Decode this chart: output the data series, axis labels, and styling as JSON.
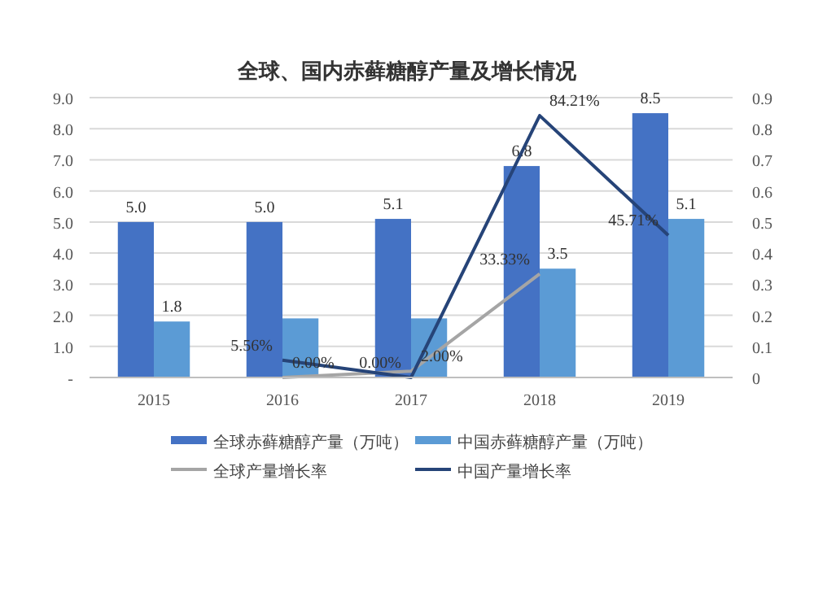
{
  "chart_data": {
    "type": "bar",
    "title": "全球、国内赤藓糖醇产量及增长情况",
    "categories": [
      "2015",
      "2016",
      "2017",
      "2018",
      "2019"
    ],
    "series": [
      {
        "name": "全球赤藓糖醇产量（万吨）",
        "color": "#4472c4",
        "values": [
          5.0,
          5.0,
          5.1,
          6.8,
          8.5
        ],
        "value_labels": [
          "5.0",
          "5.0",
          "5.1",
          "6.8",
          "8.5"
        ]
      },
      {
        "name": "中国赤藓糖醇产量（万吨）",
        "color": "#5b9bd5",
        "values": [
          1.8,
          1.9,
          1.9,
          3.5,
          5.1
        ],
        "value_labels": [
          "1.8",
          null,
          null,
          "3.5",
          "5.1"
        ]
      },
      {
        "name": "全球产量增长率",
        "type": "line",
        "axis": "y2",
        "color": "#a5a5a5",
        "values": [
          null,
          0,
          0.02,
          0.3333,
          null
        ],
        "value_labels": [
          null,
          "0.00%",
          "2.00%",
          "33.33%",
          null
        ]
      },
      {
        "name": "中国产量增长率",
        "type": "line",
        "axis": "y2",
        "color": "#264478",
        "values": [
          null,
          0.0556,
          0,
          0.8421,
          0.4571
        ],
        "value_labels": [
          null,
          "5.56%",
          "0.00%",
          "84.21%",
          "45.71%"
        ]
      }
    ],
    "ylim": [
      0,
      9
    ],
    "yticks": [
      {
        "value": 0,
        "label": "-"
      },
      {
        "value": 1,
        "label": "1.0"
      },
      {
        "value": 2,
        "label": "2.0"
      },
      {
        "value": 3,
        "label": "3.0"
      },
      {
        "value": 4,
        "label": "4.0"
      },
      {
        "value": 5,
        "label": "5.0"
      },
      {
        "value": 6,
        "label": "6.0"
      },
      {
        "value": 7,
        "label": "7.0"
      },
      {
        "value": 8,
        "label": "8.0"
      },
      {
        "value": 9,
        "label": "9.0"
      }
    ],
    "y2lim": [
      0,
      0.9
    ],
    "y2ticks": [
      0,
      0.1,
      0.2,
      0.3,
      0.4,
      0.5,
      0.6,
      0.7,
      0.8,
      0.9
    ],
    "grid": "y",
    "legend": "bottom"
  }
}
